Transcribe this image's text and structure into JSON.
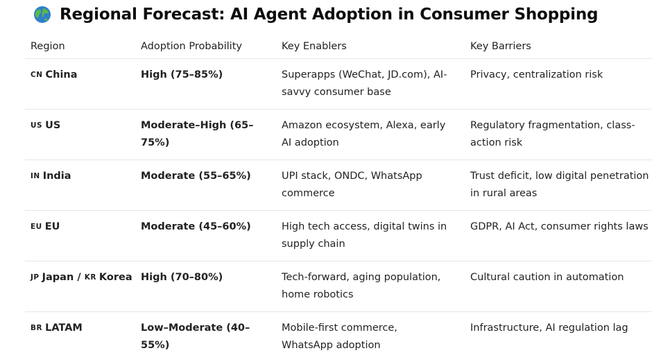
{
  "title": {
    "icon": "globe-icon",
    "text": "Regional Forecast: AI Agent Adoption in Consumer Shopping"
  },
  "columns": [
    "Region",
    "Adoption Probability",
    "Key Enablers",
    "Key Barriers"
  ],
  "rows": [
    {
      "flag": "CN",
      "region": "China",
      "probability": "High (75–85%)",
      "enablers": "Superapps (WeChat, JD.com), AI-savvy consumer base",
      "barriers": "Privacy, centralization risk"
    },
    {
      "flag": "US",
      "region": "US",
      "probability": "Moderate–High (65–75%)",
      "enablers": "Amazon ecosystem, Alexa, early AI adoption",
      "barriers": "Regulatory fragmentation, class-action risk"
    },
    {
      "flag": "IN",
      "region": "India",
      "probability": "Moderate (55–65%)",
      "enablers": "UPI stack, ONDC, WhatsApp commerce",
      "barriers": "Trust deficit, low digital penetration in rural areas"
    },
    {
      "flag": "EU",
      "region": "EU",
      "probability": "Moderate (45–60%)",
      "enablers": "High tech access, digital twins in supply chain",
      "barriers": "GDPR, AI Act, consumer rights laws"
    },
    {
      "flag": "JP",
      "region": "Japan /",
      "flag2": "KR",
      "region2": "Korea",
      "probability": "High (70–80%)",
      "enablers": "Tech-forward, aging population, home robotics",
      "barriers": "Cultural caution in automation"
    },
    {
      "flag": "BR",
      "region": "LATAM",
      "probability": "Low–Moderate (40–55%)",
      "enablers": "Mobile-first commerce, WhatsApp adoption",
      "barriers": "Infrastructure, AI regulation lag"
    }
  ],
  "colors": {
    "text": "#1f1f1f",
    "divider": "#e6e6e6",
    "globe_ocean": "#2f80c9",
    "globe_land": "#5cb84a"
  }
}
